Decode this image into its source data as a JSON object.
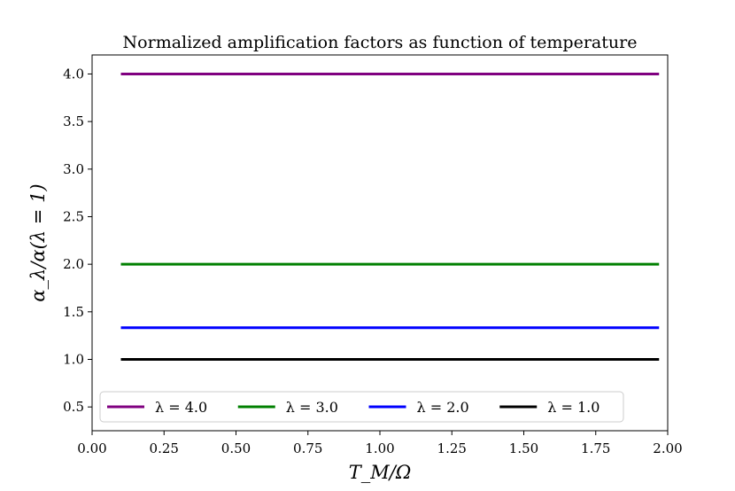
{
  "chart_data": {
    "type": "line",
    "title": "Normalized amplification factors as function of temperature",
    "xlabel": "T_M/Ω",
    "ylabel": "α_λ/α(λ = 1)",
    "xlim": [
      0.0,
      2.0
    ],
    "ylim": [
      0.25,
      4.2
    ],
    "x_ticks": [
      "0.00",
      "0.25",
      "0.50",
      "0.75",
      "1.00",
      "1.25",
      "1.50",
      "1.75",
      "2.00"
    ],
    "y_ticks": [
      "0.5",
      "1.0",
      "1.5",
      "2.0",
      "2.5",
      "3.0",
      "3.5",
      "4.0"
    ],
    "grid": false,
    "legend_position": "bottom",
    "series": [
      {
        "name": "λ = 4.0",
        "color": "#800080",
        "x": [
          0.1,
          1.97
        ],
        "y": [
          4.0,
          4.0
        ]
      },
      {
        "name": "λ = 3.0",
        "color": "#008000",
        "x": [
          0.1,
          1.97
        ],
        "y": [
          2.0,
          2.0
        ]
      },
      {
        "name": "λ = 2.0",
        "color": "#0000ff",
        "x": [
          0.1,
          1.97
        ],
        "y": [
          1.3333,
          1.3333
        ]
      },
      {
        "name": "λ = 1.0",
        "color": "#000000",
        "x": [
          0.1,
          1.97
        ],
        "y": [
          1.0,
          1.0
        ]
      }
    ]
  }
}
